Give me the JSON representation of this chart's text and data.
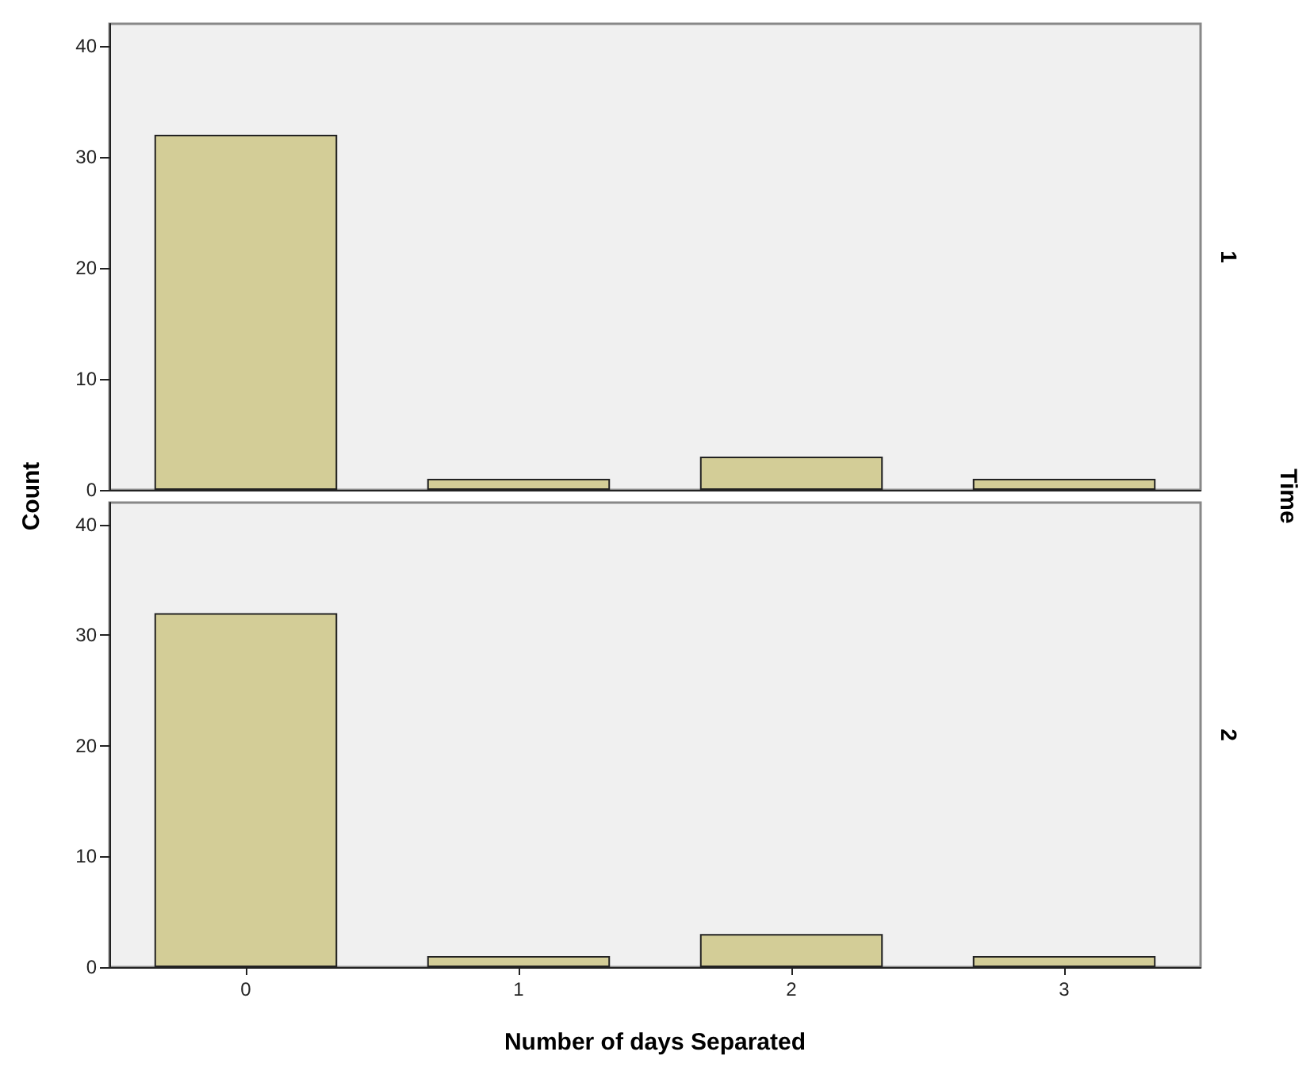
{
  "chart_data": [
    {
      "type": "bar",
      "ylabel": "Count",
      "y2label": "1",
      "annotations": [
        "Time"
      ],
      "categories": [
        "0",
        "1",
        "2",
        "3"
      ],
      "values": [
        32,
        1,
        3,
        1
      ],
      "color": "#d3cd97",
      "ylim": [
        0,
        42
      ],
      "yticks": [
        0,
        10,
        20,
        30,
        40
      ],
      "grid": false,
      "tick_labels": "y"
    },
    {
      "type": "bar",
      "xlabel": "Number of days Separated",
      "y2label": "2",
      "categories": [
        "0",
        "1",
        "2",
        "3"
      ],
      "values": [
        32,
        1,
        3,
        1
      ],
      "color": "#d3cd97",
      "ylim": [
        0,
        42
      ],
      "yticks": [
        0,
        10,
        20,
        30,
        40
      ],
      "grid": false
    }
  ]
}
